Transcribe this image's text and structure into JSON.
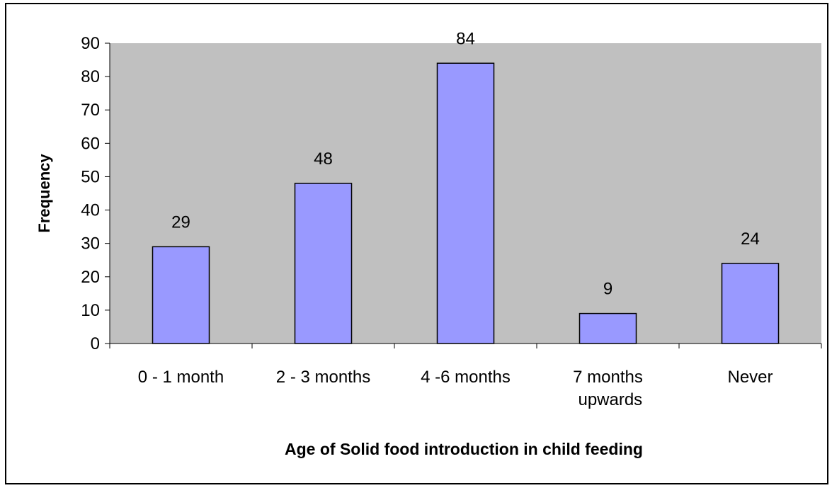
{
  "chart_data": {
    "type": "bar",
    "categories": [
      "0 - 1 month",
      "2 - 3 months",
      "4 -6 months",
      "7 months upwards",
      "Never"
    ],
    "values": [
      29,
      48,
      84,
      9,
      24
    ],
    "color": "#9999ff",
    "plot_background": "#c0c0c0",
    "ylim": [
      0,
      90
    ],
    "yticks": [
      0,
      10,
      20,
      30,
      40,
      50,
      60,
      70,
      80,
      90
    ],
    "grid": false,
    "y_label": "Frequency",
    "x_label": "Age of Solid food introduction in child feeding"
  }
}
